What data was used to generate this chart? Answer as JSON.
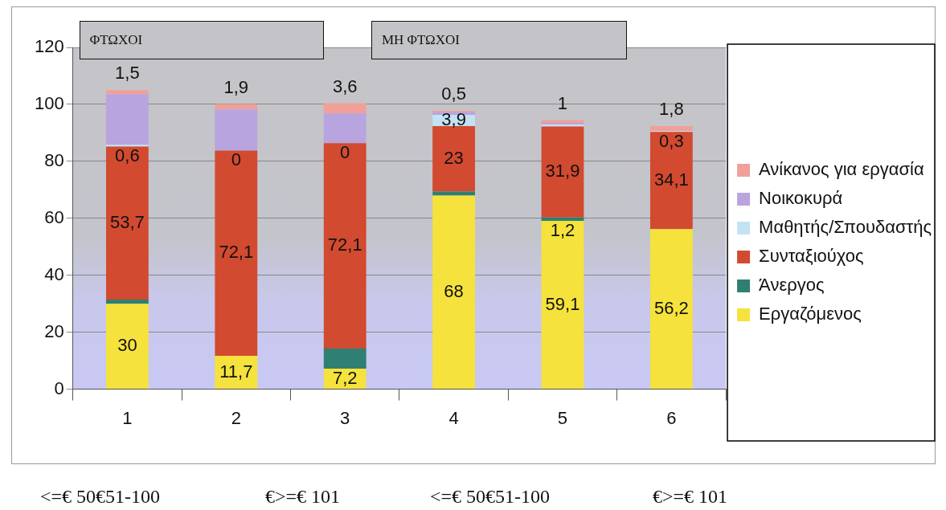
{
  "chart_data": {
    "type": "bar",
    "stacked": true,
    "categories": [
      "1",
      "2",
      "3",
      "4",
      "5",
      "6"
    ],
    "series": [
      {
        "name": "Εργαζόμενος",
        "color": "#f5e23c",
        "values": [
          30,
          11.7,
          7.2,
          68,
          59.1,
          56.2
        ],
        "value_labels": [
          "30",
          "11,7",
          "7,2",
          "68",
          "59,1",
          "56,2"
        ]
      },
      {
        "name": "Άνεργος",
        "color": "#2f7f72",
        "values": [
          1.5,
          0,
          7.1,
          1.4,
          1.2,
          0
        ],
        "value_labels": [
          null,
          null,
          null,
          null,
          "1,2",
          null
        ]
      },
      {
        "name": "Συνταξιούχος",
        "color": "#d24a30",
        "values": [
          53.7,
          72.1,
          72.1,
          23,
          31.9,
          34.1
        ],
        "value_labels": [
          "53,7",
          "72,1",
          "72,1",
          "23",
          "31,9",
          "34,1"
        ]
      },
      {
        "name": "Μαθητής/Σπουδαστής",
        "color": "#c4e2f4",
        "values": [
          0.6,
          0,
          0,
          3.9,
          0.7,
          0.3
        ],
        "value_labels": [
          "0,6",
          "0",
          "0",
          "3,9",
          null,
          "0,3"
        ]
      },
      {
        "name": "Νοικοκυρά",
        "color": "#b8a4de",
        "values": [
          17.7,
          14.4,
          10.4,
          0.9,
          0.6,
          0
        ],
        "value_labels": [
          null,
          null,
          null,
          null,
          null,
          null
        ]
      },
      {
        "name": "Ανίκανος για εργασία",
        "color": "#f0a098",
        "values": [
          1.5,
          1.9,
          3.6,
          0.5,
          1,
          1.8
        ],
        "value_labels": [
          "1,5",
          "1,9",
          "3,6",
          "0,5",
          "1",
          "1,8"
        ]
      }
    ],
    "ylim": [
      0,
      120
    ],
    "yticks": [
      0,
      20,
      40,
      60,
      80,
      100,
      120
    ],
    "grid": "y",
    "legend": "right",
    "annotations": [
      "ΦΤΩΧΟΙ",
      "ΜΗ ΦΤΩΧΟΙ",
      "<=€ 50€51-100",
      "€>=€ 101",
      "<=€ 50€51-100",
      "€>=€ 101"
    ]
  }
}
